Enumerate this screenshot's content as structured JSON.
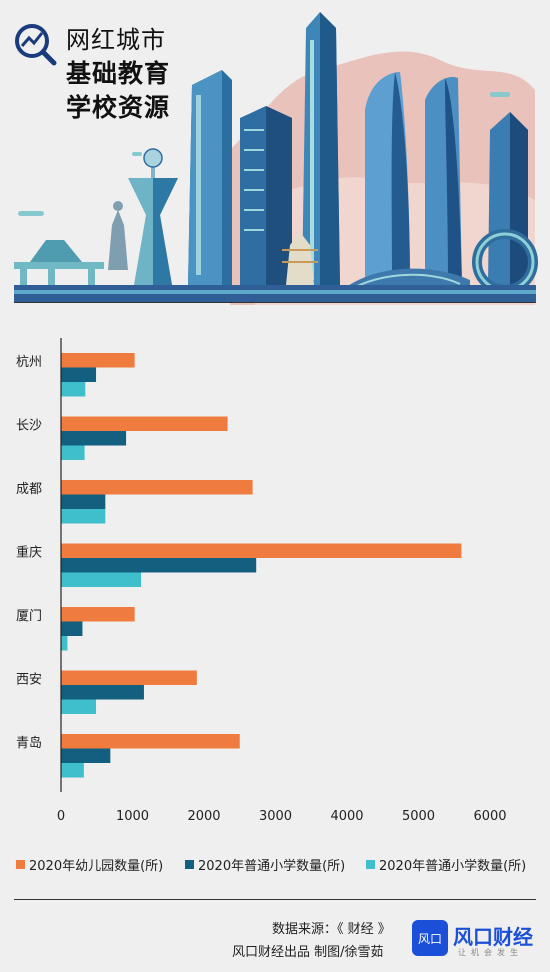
{
  "header": {
    "title_line1": "网红城市",
    "title_line2": "基础教育",
    "title_line3": "学校资源"
  },
  "chart_data": {
    "type": "bar",
    "orientation": "horizontal",
    "categories": [
      "杭州",
      "长沙",
      "成都",
      "重庆",
      "厦门",
      "西安",
      "青岛"
    ],
    "series": [
      {
        "name": "2020年幼儿园数量(所)",
        "color": "#ef7c3e",
        "values": [
          1030,
          2330,
          2680,
          5600,
          1030,
          1900,
          2500
        ]
      },
      {
        "name": "2020年普通小学数量(所)",
        "color": "#135f80",
        "values": [
          490,
          910,
          620,
          2730,
          300,
          1160,
          690
        ]
      },
      {
        "name": "2020年普通小学数量(所)",
        "color": "#3fbfcb",
        "values": [
          340,
          330,
          620,
          1120,
          90,
          490,
          320
        ]
      }
    ],
    "xlim": [
      0,
      6000
    ],
    "xticks": [
      0,
      1000,
      2000,
      3000,
      4000,
      5000,
      6000
    ],
    "grid": false,
    "legend_position": "bottom"
  },
  "footer": {
    "source": "数据来源：《 财经 》",
    "credit": "风口财经出品  制图/徐雪茹",
    "brand_badge": "风口",
    "brand_name": "风口财经",
    "brand_slogan": "让机会发生"
  }
}
